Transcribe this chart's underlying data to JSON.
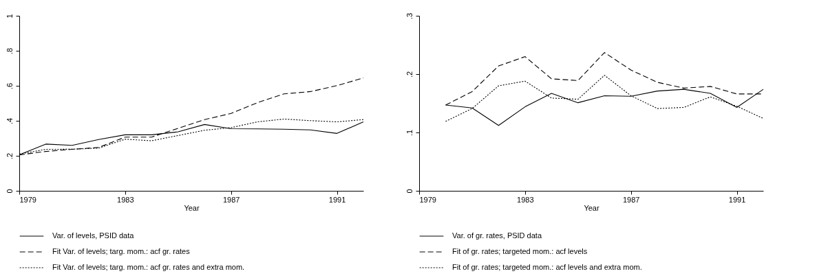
{
  "chart_data": [
    {
      "type": "line",
      "xlabel": "Year",
      "x": [
        1979,
        1980,
        1981,
        1982,
        1983,
        1984,
        1985,
        1986,
        1987,
        1988,
        1989,
        1990,
        1991,
        1992
      ],
      "series": [
        {
          "name": "Var. of levels, PSID data",
          "color": "#000000",
          "line_style": "solid",
          "values": [
            0.206,
            0.267,
            0.26,
            0.293,
            0.32,
            0.32,
            0.337,
            0.379,
            0.355,
            0.354,
            0.352,
            0.348,
            0.328,
            0.394
          ]
        },
        {
          "name": "Fit Var. of levels; targ. mom.: acf gr. rates",
          "color": "#000000",
          "line_style": "dashed",
          "values": [
            0.205,
            0.225,
            0.237,
            0.248,
            0.307,
            0.307,
            0.357,
            0.407,
            0.442,
            0.504,
            0.554,
            0.567,
            0.601,
            0.645
          ]
        },
        {
          "name": "Fit Var. of levels; targ. mom.: acf gr. rates and extra mom.",
          "color": "#000000",
          "line_style": "dotted",
          "values": [
            0.21,
            0.237,
            0.238,
            0.244,
            0.295,
            0.286,
            0.316,
            0.346,
            0.361,
            0.394,
            0.41,
            0.401,
            0.394,
            0.407
          ]
        }
      ],
      "xlim": [
        1979,
        1992
      ],
      "xticks": [
        1979,
        1983,
        1987,
        1991
      ],
      "ylim": [
        0,
        1
      ],
      "yticks": [
        {
          "value": 0,
          "label": "0"
        },
        {
          "value": 0.2,
          "label": ".2"
        },
        {
          "value": 0.4,
          "label": ".4"
        },
        {
          "value": 0.6,
          "label": ".6"
        },
        {
          "value": 0.8,
          "label": ".8"
        },
        {
          "value": 1,
          "label": "1"
        }
      ],
      "grid": false,
      "legend": "bottom"
    },
    {
      "type": "line",
      "xlabel": "Year",
      "x": [
        1980,
        1981,
        1982,
        1983,
        1984,
        1985,
        1986,
        1987,
        1988,
        1989,
        1990,
        1991,
        1992
      ],
      "series": [
        {
          "name": "Var. of gr. rates, PSID data",
          "color": "#000000",
          "line_style": "solid",
          "values": [
            0.147,
            0.142,
            0.112,
            0.144,
            0.167,
            0.151,
            0.163,
            0.162,
            0.171,
            0.174,
            0.167,
            0.143,
            0.174
          ]
        },
        {
          "name": "Fit of gr. rates; targeted mom.: acf levels",
          "color": "#000000",
          "line_style": "dashed",
          "values": [
            0.147,
            0.17,
            0.214,
            0.23,
            0.192,
            0.189,
            0.237,
            0.207,
            0.186,
            0.176,
            0.179,
            0.166,
            0.166
          ]
        },
        {
          "name": "Fit of gr. rates; targeted mom.: acf levels and extra mom.",
          "color": "#000000",
          "line_style": "dotted",
          "values": [
            0.119,
            0.141,
            0.18,
            0.188,
            0.159,
            0.157,
            0.198,
            0.163,
            0.141,
            0.143,
            0.161,
            0.145,
            0.124
          ]
        }
      ],
      "xlim": [
        1979,
        1992
      ],
      "xticks": [
        1979,
        1983,
        1987,
        1991
      ],
      "ylim": [
        0,
        0.3
      ],
      "yticks": [
        {
          "value": 0,
          "label": "0"
        },
        {
          "value": 0.1,
          "label": ".1"
        },
        {
          "value": 0.2,
          "label": ".2"
        },
        {
          "value": 0.3,
          "label": ".3"
        }
      ],
      "grid": false,
      "legend": "bottom"
    }
  ]
}
